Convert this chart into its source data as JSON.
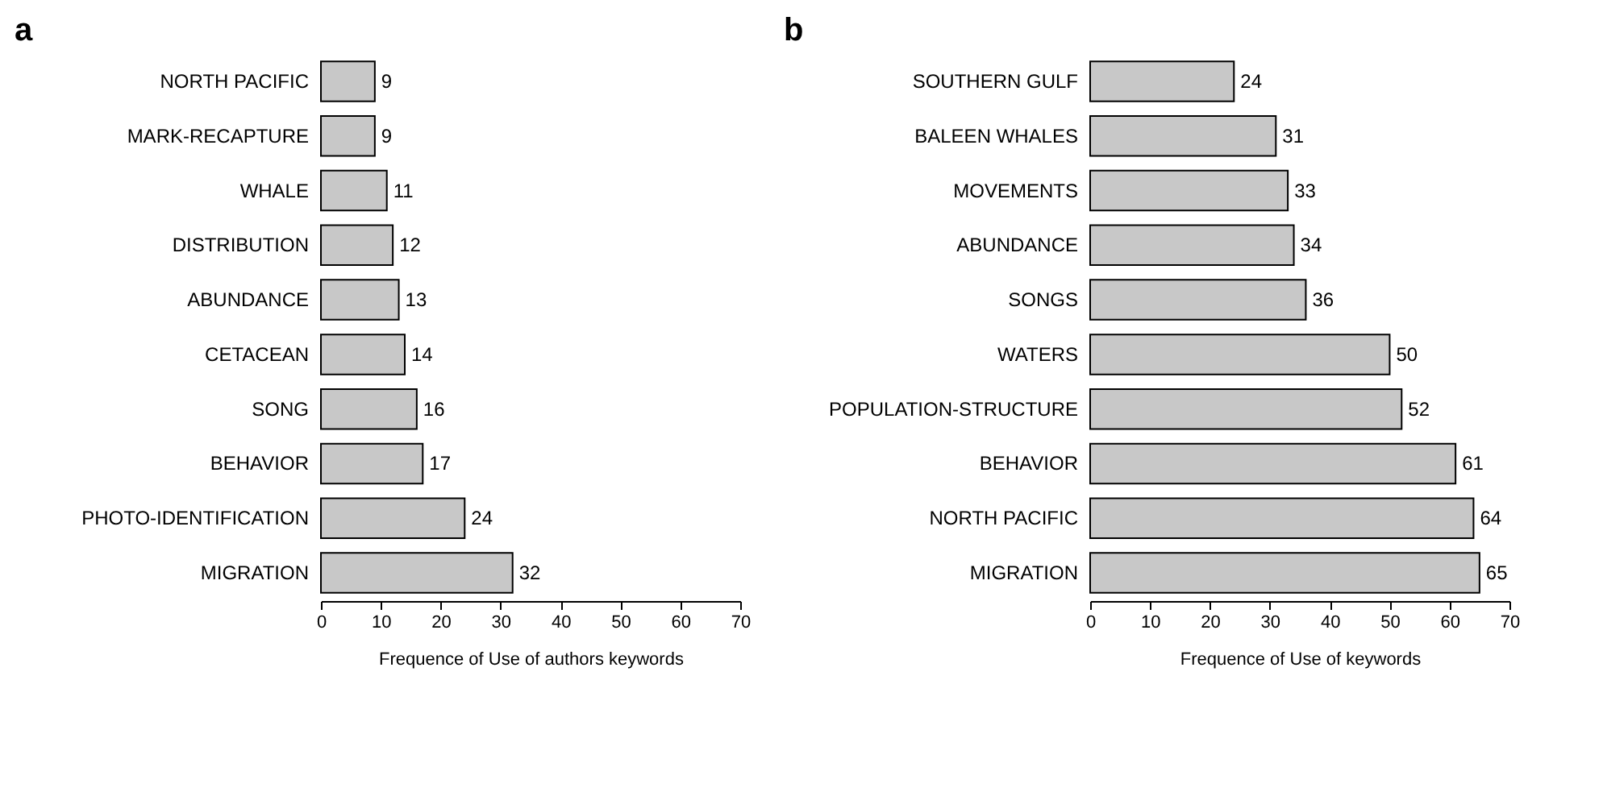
{
  "chart_data": [
    {
      "type": "bar",
      "orientation": "horizontal",
      "title": "a",
      "xlabel": "Frequence of Use of authors keywords",
      "categories": [
        "NORTH PACIFIC",
        "MARK-RECAPTURE",
        "WHALE",
        "DISTRIBUTION",
        "ABUNDANCE",
        "CETACEAN",
        "SONG",
        "BEHAVIOR",
        "PHOTO-IDENTIFICATION",
        "MIGRATION"
      ],
      "values": [
        9,
        9,
        11,
        12,
        13,
        14,
        16,
        17,
        24,
        32
      ],
      "color": "#c8c8c8",
      "xlim": [
        0,
        70
      ],
      "xticks": [
        0,
        10,
        20,
        30,
        40,
        50,
        60,
        70
      ],
      "data_labels": true,
      "grid": false
    },
    {
      "type": "bar",
      "orientation": "horizontal",
      "title": "b",
      "xlabel": "Frequence of Use of keywords",
      "categories": [
        "SOUTHERN GULF",
        "BALEEN WHALES",
        "MOVEMENTS",
        "ABUNDANCE",
        "SONGS",
        "WATERS",
        "POPULATION-STRUCTURE",
        "BEHAVIOR",
        "NORTH PACIFIC",
        "MIGRATION"
      ],
      "values": [
        24,
        31,
        33,
        34,
        36,
        50,
        52,
        61,
        64,
        65
      ],
      "color": "#c8c8c8",
      "xlim": [
        0,
        70
      ],
      "xticks": [
        0,
        10,
        20,
        30,
        40,
        50,
        60,
        70
      ],
      "data_labels": true,
      "grid": false
    }
  ]
}
